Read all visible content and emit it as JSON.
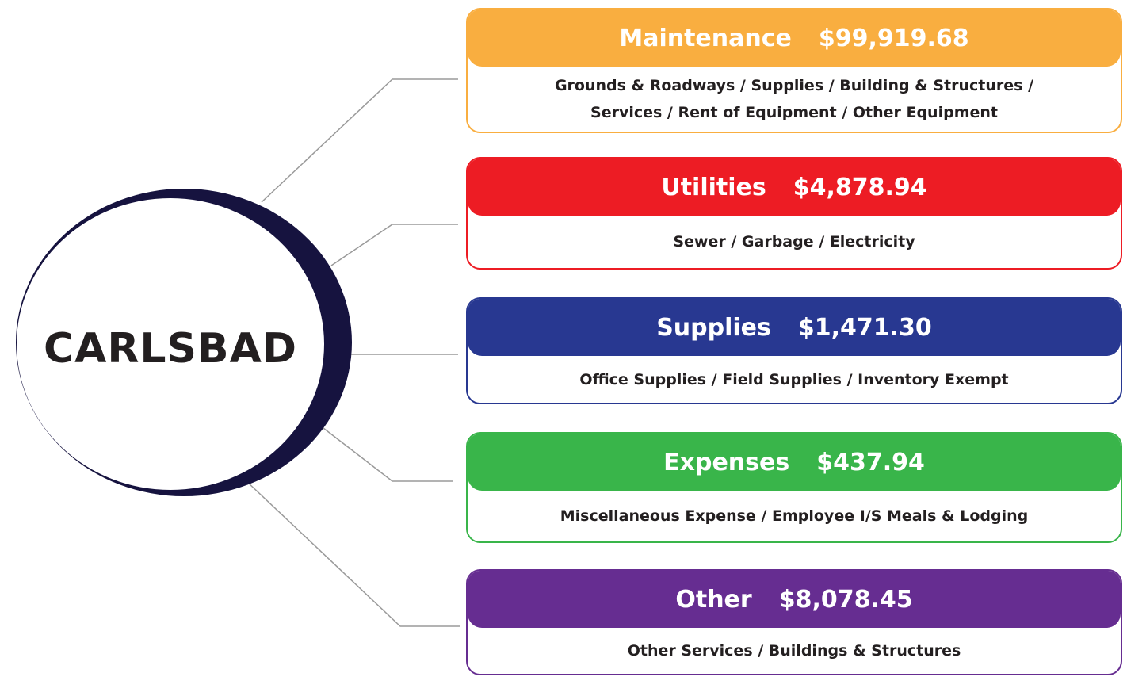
{
  "center": {
    "label": "CARLSBAD"
  },
  "nodes": [
    {
      "title": "Maintenance",
      "amount": "$99,919.68",
      "color": "#f9ae40",
      "details": [
        "Grounds & Roadways  /  Supplies  /   Building & Structures /",
        "Services  /  Rent of Equipment  /  Other Equipment"
      ]
    },
    {
      "title": "Utilities",
      "amount": "$4,878.94",
      "color": "#ed1c24",
      "details": [
        "Sewer  /  Garbage  /  Electricity"
      ]
    },
    {
      "title": "Supplies",
      "amount": "$1,471.30",
      "color": "#283891",
      "details": [
        "Office Supplies  /   Field Supplies  /  Inventory Exempt"
      ]
    },
    {
      "title": "Expenses",
      "amount": "$437.94",
      "color": "#39b54a",
      "details": [
        "Miscellaneous Expense  /  Employee I/S Meals & Lodging"
      ]
    },
    {
      "title": "Other",
      "amount": "$8,078.45",
      "color": "#662d91",
      "details": [
        "Other Services /  Buildings & Structures"
      ]
    }
  ]
}
